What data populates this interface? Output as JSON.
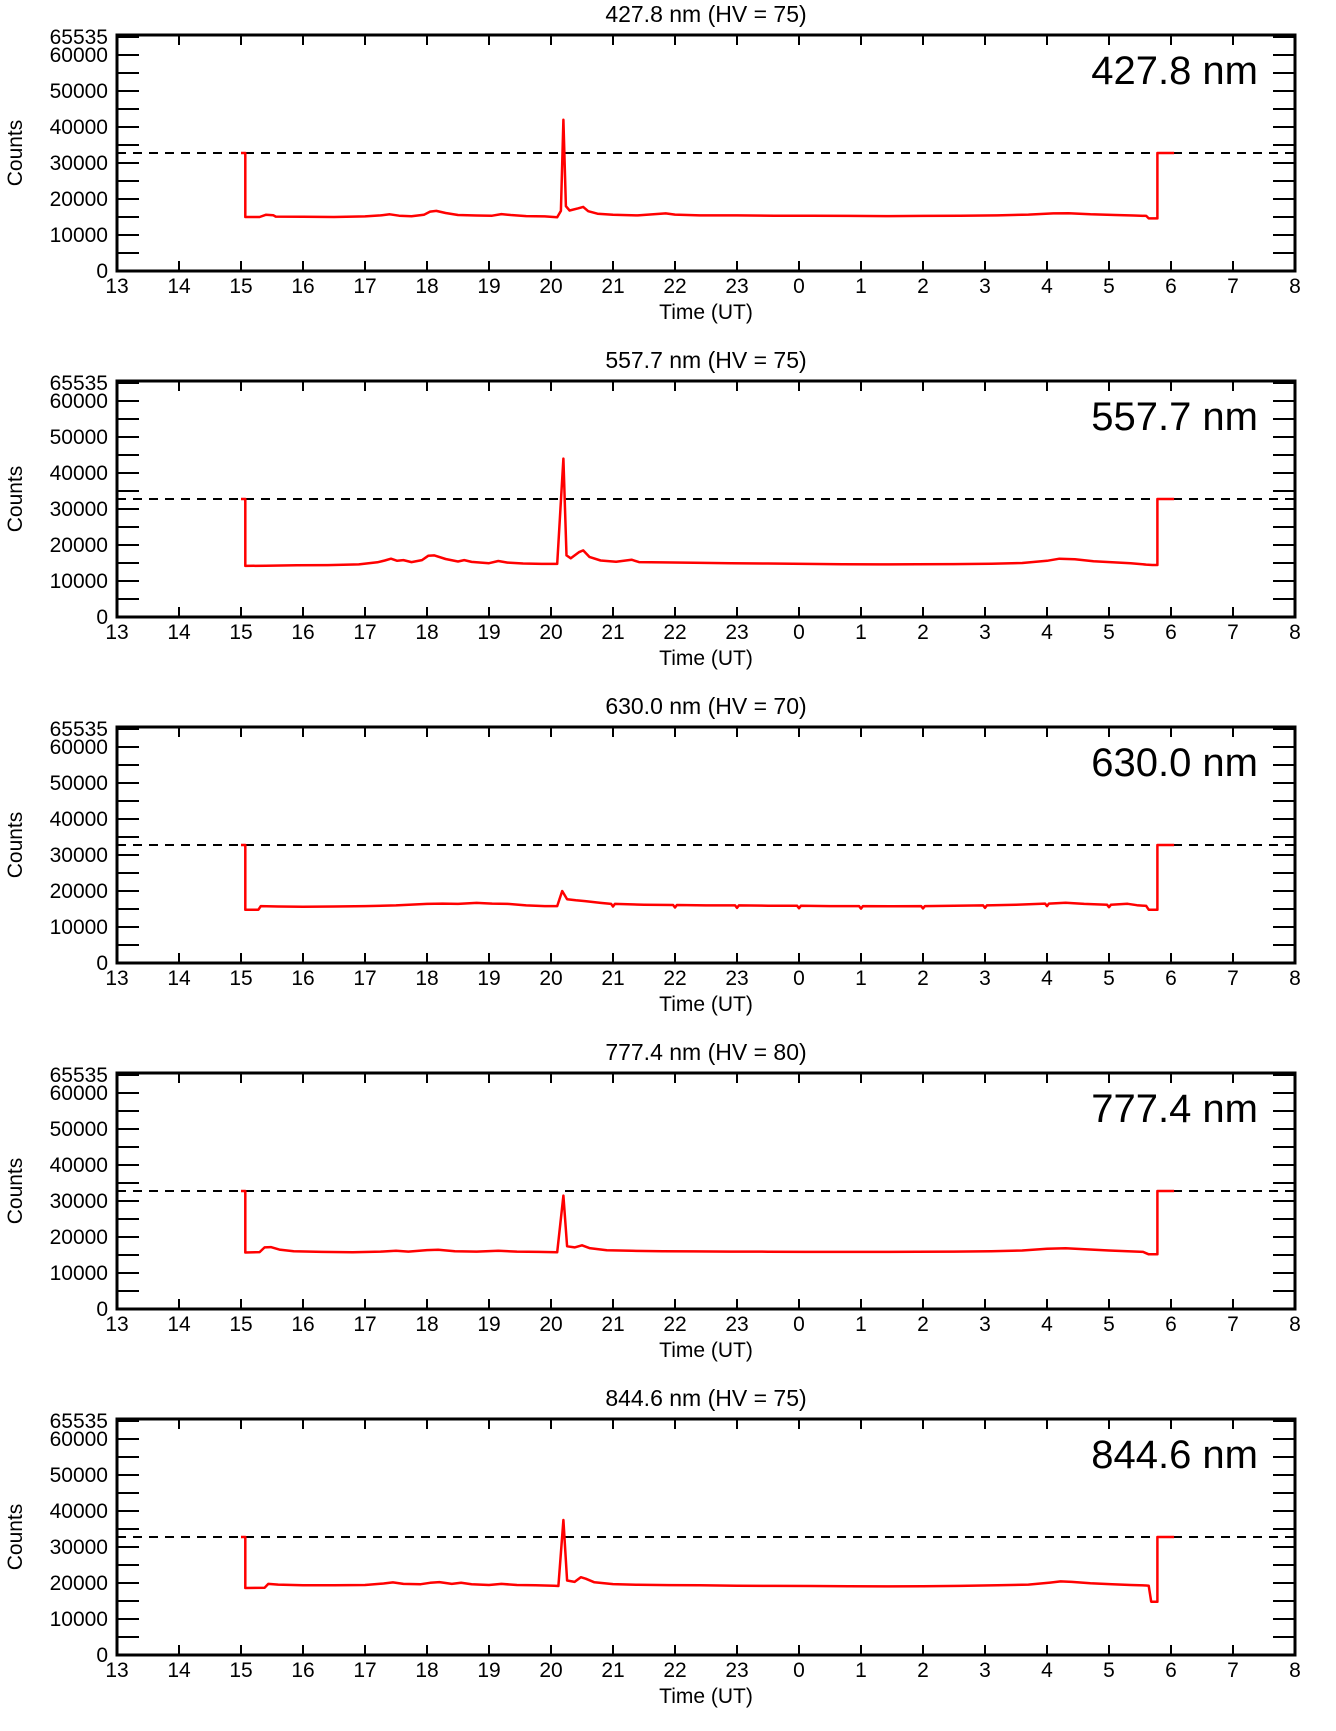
{
  "figure": {
    "ylabel": "Counts",
    "xlabel": "Time (UT)",
    "colors": {
      "trace": "#ff0000",
      "axis": "#000000",
      "threshold": "#000000",
      "background": "#ffffff"
    },
    "x_axis": {
      "min": 13,
      "max": 32,
      "hour_labels": [
        "13",
        "14",
        "15",
        "16",
        "17",
        "18",
        "19",
        "20",
        "21",
        "22",
        "23",
        "0",
        "1",
        "2",
        "3",
        "4",
        "5",
        "6",
        "7",
        "8"
      ]
    },
    "y_axis": {
      "min": 0,
      "max": 65535,
      "minor_step": 5000,
      "major_ticks": [
        0,
        10000,
        20000,
        30000,
        40000,
        50000,
        60000
      ],
      "top_label": "65535",
      "grid": false
    },
    "legend_position": "none"
  },
  "chart_data": [
    {
      "type": "line",
      "title": "427.8 nm (HV = 75)",
      "wavelength_label": "427.8 nm",
      "hv": "75",
      "threshold": 32768,
      "points": [
        [
          15.0,
          32768
        ],
        [
          15.07,
          32768
        ],
        [
          15.07,
          15000
        ],
        [
          15.3,
          15000
        ],
        [
          15.4,
          15600
        ],
        [
          15.52,
          15500
        ],
        [
          15.56,
          15100
        ],
        [
          16.0,
          15050
        ],
        [
          16.5,
          15000
        ],
        [
          17.0,
          15150
        ],
        [
          17.25,
          15450
        ],
        [
          17.4,
          15750
        ],
        [
          17.55,
          15350
        ],
        [
          17.75,
          15200
        ],
        [
          17.95,
          15600
        ],
        [
          18.05,
          16500
        ],
        [
          18.15,
          16700
        ],
        [
          18.3,
          16100
        ],
        [
          18.5,
          15550
        ],
        [
          18.8,
          15400
        ],
        [
          19.05,
          15350
        ],
        [
          19.2,
          15800
        ],
        [
          19.35,
          15550
        ],
        [
          19.6,
          15250
        ],
        [
          19.9,
          15150
        ],
        [
          20.1,
          14950
        ],
        [
          20.16,
          16700
        ],
        [
          20.2,
          42000
        ],
        [
          20.24,
          18000
        ],
        [
          20.3,
          16800
        ],
        [
          20.44,
          17400
        ],
        [
          20.52,
          17800
        ],
        [
          20.6,
          16600
        ],
        [
          20.75,
          15900
        ],
        [
          21.0,
          15600
        ],
        [
          21.4,
          15450
        ],
        [
          21.85,
          16000
        ],
        [
          22.0,
          15650
        ],
        [
          22.4,
          15450
        ],
        [
          23.0,
          15450
        ],
        [
          23.6,
          15350
        ],
        [
          24.2,
          15350
        ],
        [
          24.8,
          15300
        ],
        [
          25.4,
          15250
        ],
        [
          26.0,
          15300
        ],
        [
          26.6,
          15350
        ],
        [
          27.2,
          15450
        ],
        [
          27.7,
          15650
        ],
        [
          28.1,
          16000
        ],
        [
          28.35,
          16050
        ],
        [
          28.7,
          15750
        ],
        [
          29.1,
          15550
        ],
        [
          29.4,
          15400
        ],
        [
          29.6,
          15300
        ],
        [
          29.64,
          14600
        ],
        [
          29.78,
          14600
        ],
        [
          29.78,
          32768
        ],
        [
          30.05,
          32768
        ]
      ]
    },
    {
      "type": "line",
      "title": "557.7 nm (HV = 75)",
      "wavelength_label": "557.7 nm",
      "hv": "75",
      "threshold": 32768,
      "points": [
        [
          15.0,
          32768
        ],
        [
          15.07,
          32768
        ],
        [
          15.07,
          14200
        ],
        [
          15.4,
          14250
        ],
        [
          15.9,
          14350
        ],
        [
          16.4,
          14400
        ],
        [
          16.9,
          14600
        ],
        [
          17.2,
          15200
        ],
        [
          17.32,
          15700
        ],
        [
          17.42,
          16200
        ],
        [
          17.52,
          15600
        ],
        [
          17.62,
          15800
        ],
        [
          17.75,
          15250
        ],
        [
          17.92,
          15800
        ],
        [
          18.02,
          17000
        ],
        [
          18.12,
          17100
        ],
        [
          18.3,
          16100
        ],
        [
          18.5,
          15400
        ],
        [
          18.6,
          15800
        ],
        [
          18.72,
          15300
        ],
        [
          19.0,
          14950
        ],
        [
          19.15,
          15550
        ],
        [
          19.3,
          15100
        ],
        [
          19.55,
          14850
        ],
        [
          19.85,
          14750
        ],
        [
          20.1,
          14750
        ],
        [
          20.2,
          44000
        ],
        [
          20.25,
          17100
        ],
        [
          20.32,
          16300
        ],
        [
          20.45,
          18000
        ],
        [
          20.52,
          18500
        ],
        [
          20.62,
          16700
        ],
        [
          20.8,
          15700
        ],
        [
          21.05,
          15350
        ],
        [
          21.3,
          15900
        ],
        [
          21.42,
          15250
        ],
        [
          21.8,
          15150
        ],
        [
          22.3,
          15050
        ],
        [
          22.9,
          14900
        ],
        [
          23.5,
          14850
        ],
        [
          24.1,
          14750
        ],
        [
          24.7,
          14650
        ],
        [
          25.3,
          14600
        ],
        [
          25.9,
          14650
        ],
        [
          26.5,
          14700
        ],
        [
          27.1,
          14800
        ],
        [
          27.6,
          15000
        ],
        [
          28.0,
          15600
        ],
        [
          28.2,
          16200
        ],
        [
          28.45,
          16050
        ],
        [
          28.75,
          15500
        ],
        [
          29.05,
          15200
        ],
        [
          29.35,
          14950
        ],
        [
          29.6,
          14550
        ],
        [
          29.7,
          14450
        ],
        [
          29.78,
          14450
        ],
        [
          29.78,
          32768
        ],
        [
          30.05,
          32768
        ]
      ]
    },
    {
      "type": "line",
      "title": "630.0 nm (HV = 70)",
      "wavelength_label": "630.0 nm",
      "hv": "70",
      "threshold": 32768,
      "points": [
        [
          15.0,
          32768
        ],
        [
          15.07,
          32768
        ],
        [
          15.07,
          14800
        ],
        [
          15.28,
          14800
        ],
        [
          15.32,
          15800
        ],
        [
          15.6,
          15700
        ],
        [
          16.0,
          15600
        ],
        [
          16.5,
          15700
        ],
        [
          17.0,
          15800
        ],
        [
          17.5,
          16000
        ],
        [
          18.0,
          16400
        ],
        [
          18.25,
          16500
        ],
        [
          18.5,
          16400
        ],
        [
          18.8,
          16700
        ],
        [
          19.05,
          16500
        ],
        [
          19.3,
          16400
        ],
        [
          19.6,
          16000
        ],
        [
          19.9,
          15800
        ],
        [
          20.1,
          15800
        ],
        [
          20.18,
          20000
        ],
        [
          20.26,
          17700
        ],
        [
          20.4,
          17400
        ],
        [
          20.55,
          17200
        ],
        [
          20.8,
          16700
        ],
        [
          20.97,
          16400
        ],
        [
          21.0,
          15700
        ],
        [
          21.03,
          16400
        ],
        [
          21.5,
          16200
        ],
        [
          21.97,
          16100
        ],
        [
          22.0,
          15400
        ],
        [
          22.03,
          16100
        ],
        [
          22.5,
          16000
        ],
        [
          22.97,
          16000
        ],
        [
          23.0,
          15300
        ],
        [
          23.03,
          16000
        ],
        [
          23.5,
          15900
        ],
        [
          23.97,
          15900
        ],
        [
          24.0,
          15200
        ],
        [
          24.03,
          15900
        ],
        [
          24.5,
          15800
        ],
        [
          24.97,
          15800
        ],
        [
          25.0,
          15100
        ],
        [
          25.03,
          15800
        ],
        [
          25.5,
          15750
        ],
        [
          25.97,
          15800
        ],
        [
          26.0,
          15150
        ],
        [
          26.03,
          15800
        ],
        [
          26.5,
          15900
        ],
        [
          26.97,
          16000
        ],
        [
          27.0,
          15300
        ],
        [
          27.03,
          16000
        ],
        [
          27.5,
          16150
        ],
        [
          27.97,
          16500
        ],
        [
          28.0,
          15800
        ],
        [
          28.03,
          16500
        ],
        [
          28.3,
          16750
        ],
        [
          28.6,
          16400
        ],
        [
          28.97,
          16150
        ],
        [
          29.0,
          15500
        ],
        [
          29.03,
          16150
        ],
        [
          29.3,
          16450
        ],
        [
          29.45,
          16050
        ],
        [
          29.6,
          15850
        ],
        [
          29.64,
          14800
        ],
        [
          29.78,
          14800
        ],
        [
          29.78,
          32768
        ],
        [
          30.05,
          32768
        ]
      ]
    },
    {
      "type": "line",
      "title": "777.4 nm (HV = 80)",
      "wavelength_label": "777.4 nm",
      "hv": "80",
      "threshold": 32768,
      "points": [
        [
          15.0,
          32768
        ],
        [
          15.07,
          32768
        ],
        [
          15.07,
          15700
        ],
        [
          15.3,
          15800
        ],
        [
          15.38,
          17100
        ],
        [
          15.48,
          17200
        ],
        [
          15.62,
          16500
        ],
        [
          15.85,
          16050
        ],
        [
          16.3,
          15850
        ],
        [
          16.8,
          15750
        ],
        [
          17.25,
          15950
        ],
        [
          17.5,
          16150
        ],
        [
          17.7,
          15950
        ],
        [
          18.0,
          16350
        ],
        [
          18.18,
          16450
        ],
        [
          18.45,
          16050
        ],
        [
          18.8,
          15950
        ],
        [
          19.15,
          16150
        ],
        [
          19.45,
          15950
        ],
        [
          19.8,
          15850
        ],
        [
          20.1,
          15750
        ],
        [
          20.2,
          31500
        ],
        [
          20.26,
          17400
        ],
        [
          20.38,
          17100
        ],
        [
          20.5,
          17700
        ],
        [
          20.62,
          16900
        ],
        [
          20.9,
          16300
        ],
        [
          21.3,
          16150
        ],
        [
          21.8,
          16050
        ],
        [
          22.3,
          16000
        ],
        [
          22.9,
          15950
        ],
        [
          23.5,
          15900
        ],
        [
          24.1,
          15850
        ],
        [
          24.7,
          15850
        ],
        [
          25.3,
          15850
        ],
        [
          25.9,
          15900
        ],
        [
          26.5,
          15950
        ],
        [
          27.1,
          16050
        ],
        [
          27.6,
          16250
        ],
        [
          28.0,
          16750
        ],
        [
          28.3,
          16850
        ],
        [
          28.65,
          16550
        ],
        [
          29.0,
          16250
        ],
        [
          29.3,
          16050
        ],
        [
          29.55,
          15850
        ],
        [
          29.64,
          15200
        ],
        [
          29.78,
          15200
        ],
        [
          29.78,
          32768
        ],
        [
          30.05,
          32768
        ]
      ]
    },
    {
      "type": "line",
      "title": "844.6 nm (HV = 75)",
      "wavelength_label": "844.6 nm",
      "hv": "75",
      "threshold": 32768,
      "points": [
        [
          15.0,
          32768
        ],
        [
          15.07,
          32768
        ],
        [
          15.07,
          18600
        ],
        [
          15.38,
          18700
        ],
        [
          15.44,
          19750
        ],
        [
          15.6,
          19550
        ],
        [
          16.0,
          19350
        ],
        [
          16.5,
          19350
        ],
        [
          17.0,
          19450
        ],
        [
          17.3,
          19850
        ],
        [
          17.45,
          20150
        ],
        [
          17.62,
          19750
        ],
        [
          17.9,
          19650
        ],
        [
          18.05,
          20050
        ],
        [
          18.2,
          20250
        ],
        [
          18.4,
          19750
        ],
        [
          18.55,
          20050
        ],
        [
          18.72,
          19650
        ],
        [
          19.0,
          19450
        ],
        [
          19.2,
          19750
        ],
        [
          19.45,
          19450
        ],
        [
          19.75,
          19350
        ],
        [
          20.05,
          19250
        ],
        [
          20.12,
          19150
        ],
        [
          20.2,
          37500
        ],
        [
          20.26,
          20700
        ],
        [
          20.38,
          20300
        ],
        [
          20.48,
          21600
        ],
        [
          20.56,
          21200
        ],
        [
          20.7,
          20200
        ],
        [
          21.0,
          19700
        ],
        [
          21.4,
          19500
        ],
        [
          21.9,
          19400
        ],
        [
          22.4,
          19350
        ],
        [
          23.0,
          19250
        ],
        [
          23.6,
          19200
        ],
        [
          24.2,
          19150
        ],
        [
          24.8,
          19100
        ],
        [
          25.4,
          19050
        ],
        [
          26.0,
          19100
        ],
        [
          26.6,
          19200
        ],
        [
          27.2,
          19350
        ],
        [
          27.7,
          19550
        ],
        [
          28.05,
          20100
        ],
        [
          28.22,
          20450
        ],
        [
          28.4,
          20300
        ],
        [
          28.7,
          19900
        ],
        [
          29.05,
          19650
        ],
        [
          29.35,
          19450
        ],
        [
          29.6,
          19300
        ],
        [
          29.64,
          19250
        ],
        [
          29.68,
          14800
        ],
        [
          29.78,
          14800
        ],
        [
          29.78,
          32768
        ],
        [
          30.05,
          32768
        ]
      ]
    }
  ]
}
